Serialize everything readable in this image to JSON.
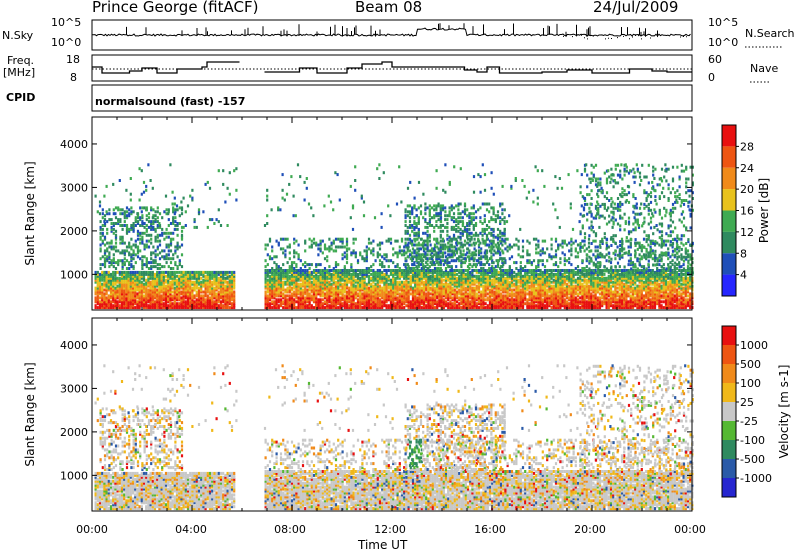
{
  "header": {
    "station": "Prince George (fitACF)",
    "beam": "Beam 08",
    "date": "24/Jul/2009"
  },
  "side_labels": {
    "nsky": "N.Sky",
    "nsky_ticks": [
      "10^5",
      "10^0"
    ],
    "nsearch": "N.Search",
    "nsearch_ticks": [
      "10^5",
      "10^0"
    ],
    "freq_line1": "Freq.",
    "freq_line2": "[MHz]",
    "freq_ticks": [
      "18",
      "8"
    ],
    "nave": "Nave",
    "nave_ticks": [
      "60",
      "0"
    ],
    "cpid": "CPID",
    "mode_text": "normalsound (fast) -157"
  },
  "chart_data": [
    {
      "type": "heatmap",
      "title": "Power",
      "ylabel": "Slant Range [km]",
      "xlabel": "Time UT",
      "yticks": [
        1000,
        2000,
        3000,
        4000
      ],
      "ylim": [
        180,
        4620
      ],
      "xlim_hours": [
        0,
        24
      ],
      "xtick_labels": [
        "00:00",
        "04:00",
        "08:00",
        "12:00",
        "16:00",
        "20:00",
        "00:00"
      ],
      "colorbar": {
        "label": "Power [dB]",
        "tick_labels": [
          "4",
          "8",
          "12",
          "16",
          "20",
          "24",
          "28"
        ],
        "colors": [
          "#2626ff",
          "#1f4fb8",
          "#2f8a5f",
          "#3faa52",
          "#e8c21c",
          "#f08a1a",
          "#ee5512",
          "#e81010"
        ]
      }
    },
    {
      "type": "heatmap",
      "title": "Velocity",
      "ylabel": "Slant Range [km]",
      "xlabel": "Time UT",
      "yticks": [
        1000,
        2000,
        3000,
        4000
      ],
      "ylim": [
        180,
        4620
      ],
      "xlim_hours": [
        0,
        24
      ],
      "xtick_labels": [
        "00:00",
        "04:00",
        "08:00",
        "12:00",
        "16:00",
        "20:00",
        "00:00"
      ],
      "colorbar": {
        "label": "Velocity [m s-1]",
        "tick_labels": [
          "1000",
          "500",
          "100",
          "25",
          "-25",
          "-100",
          "-500",
          "-1000"
        ],
        "colors": [
          "#2626d0",
          "#2a5aa8",
          "#2f8a5f",
          "#55b833",
          "#c8c8c8",
          "#f0b81a",
          "#f08a1a",
          "#ee5512",
          "#e81010"
        ]
      }
    }
  ],
  "time_label": "Time UT"
}
